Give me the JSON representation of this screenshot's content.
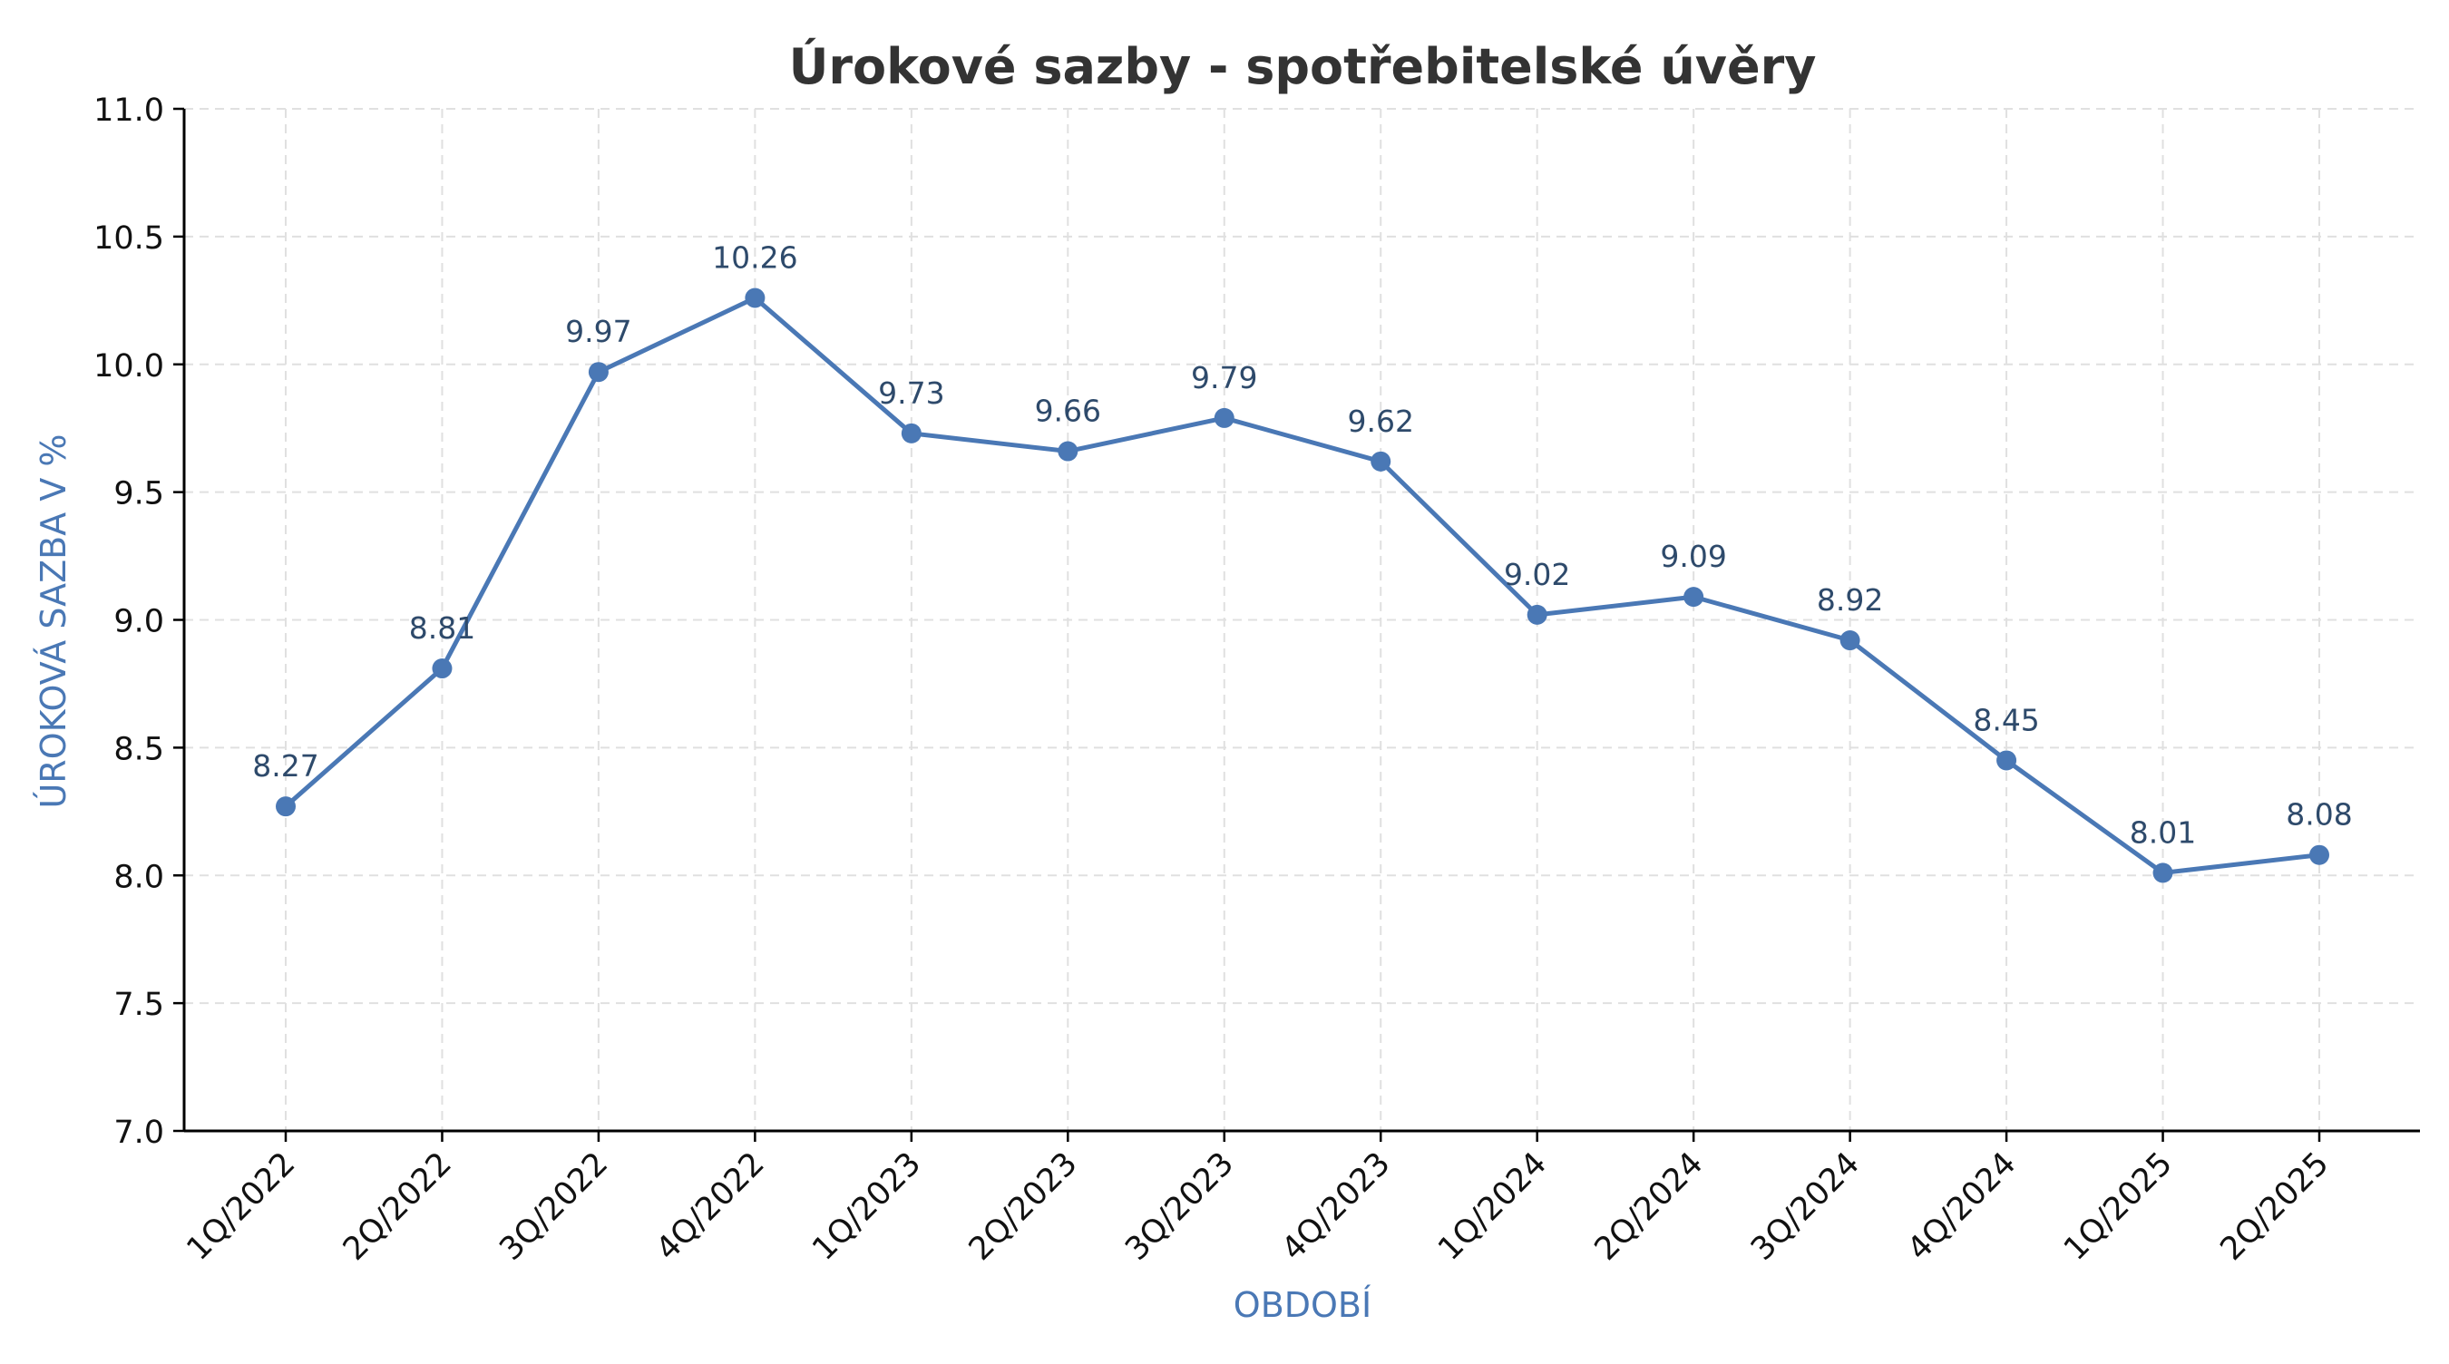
{
  "chart_data": {
    "type": "line",
    "title": "Úrokové sazby - spotřebitelské úvěry",
    "xlabel": "OBDOBÍ",
    "ylabel": "ÚROKOVÁ SAZBA V %",
    "categories": [
      "1Q/2022",
      "2Q/2022",
      "3Q/2022",
      "4Q/2022",
      "1Q/2023",
      "2Q/2023",
      "3Q/2023",
      "4Q/2023",
      "1Q/2024",
      "2Q/2024",
      "3Q/2024",
      "4Q/2024",
      "1Q/2025",
      "2Q/2025"
    ],
    "series": [
      {
        "values": [
          8.27,
          8.81,
          9.97,
          10.26,
          9.73,
          9.66,
          9.79,
          9.62,
          9.02,
          9.09,
          8.92,
          8.45,
          8.01,
          8.08
        ],
        "data_labels": [
          "8.27",
          "8.81",
          "9.97",
          "10.26",
          "9.73",
          "9.66",
          "9.79",
          "9.62",
          "9.02",
          "9.09",
          "8.92",
          "8.45",
          "8.01",
          "8.08"
        ]
      }
    ],
    "ylim": [
      7.0,
      11.0
    ],
    "yticks": [
      "7.0",
      "7.5",
      "8.0",
      "8.5",
      "9.0",
      "9.5",
      "10.0",
      "10.5",
      "11.0"
    ],
    "grid": true,
    "colors": {
      "line": "#4a78b5",
      "data_label": "#2e4a6b",
      "axis_label": "#4a78b5",
      "title": "#333333",
      "grid": "#e0e0e0",
      "axis": "#000000"
    }
  }
}
